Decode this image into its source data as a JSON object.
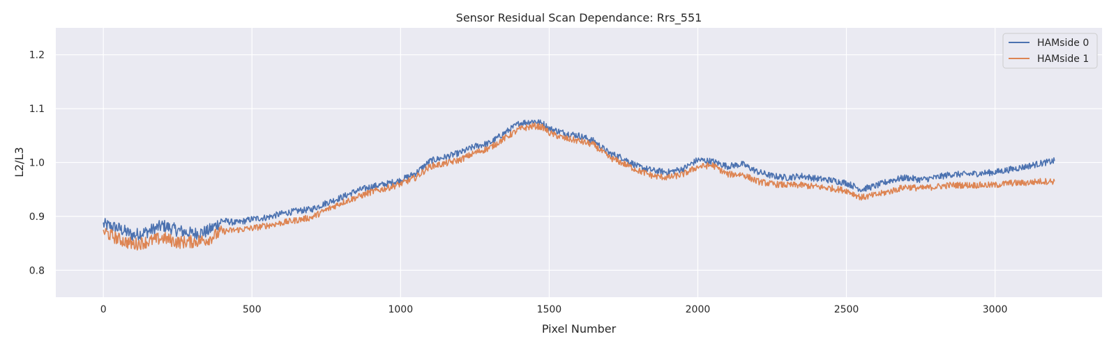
{
  "chart_data": {
    "type": "line",
    "title": "Sensor Residual Scan Dependance: Rrs_551",
    "xlabel": "Pixel Number",
    "ylabel": "L2/L3",
    "xlim": [
      -160,
      3360
    ],
    "ylim": [
      0.75,
      1.25
    ],
    "xticks": [
      0,
      500,
      1000,
      1500,
      2000,
      2500,
      3000
    ],
    "yticks": [
      0.8,
      0.9,
      1.0,
      1.1,
      1.2
    ],
    "xtick_labels": [
      "0",
      "500",
      "1000",
      "1500",
      "2000",
      "2500",
      "3000"
    ],
    "ytick_labels": [
      "0.8",
      "0.9",
      "1.0",
      "1.1",
      "1.2"
    ],
    "grid": true,
    "legend_position": "top-right",
    "x": [
      0,
      50,
      100,
      150,
      200,
      250,
      300,
      350,
      400,
      450,
      500,
      550,
      600,
      650,
      700,
      750,
      800,
      850,
      900,
      950,
      1000,
      1050,
      1100,
      1150,
      1200,
      1250,
      1300,
      1350,
      1400,
      1450,
      1480,
      1500,
      1550,
      1600,
      1650,
      1700,
      1750,
      1800,
      1850,
      1900,
      1950,
      2000,
      2050,
      2100,
      2150,
      2200,
      2250,
      2300,
      2350,
      2400,
      2450,
      2500,
      2550,
      2600,
      2650,
      2700,
      2750,
      2800,
      2850,
      2900,
      2950,
      3000,
      3050,
      3100,
      3150,
      3200
    ],
    "series": [
      {
        "name": "HAMside 0",
        "color": "#4c72b0",
        "values": [
          0.885,
          0.878,
          0.865,
          0.872,
          0.883,
          0.874,
          0.868,
          0.872,
          0.892,
          0.888,
          0.895,
          0.898,
          0.905,
          0.91,
          0.913,
          0.925,
          0.935,
          0.947,
          0.955,
          0.96,
          0.967,
          0.98,
          1.003,
          1.01,
          1.018,
          1.03,
          1.036,
          1.055,
          1.073,
          1.077,
          1.072,
          1.063,
          1.055,
          1.05,
          1.04,
          1.018,
          1.008,
          0.992,
          0.985,
          0.982,
          0.988,
          1.005,
          1.002,
          0.993,
          0.997,
          0.983,
          0.975,
          0.972,
          0.975,
          0.97,
          0.967,
          0.962,
          0.95,
          0.957,
          0.967,
          0.972,
          0.968,
          0.972,
          0.978,
          0.978,
          0.98,
          0.982,
          0.987,
          0.992,
          0.998,
          1.003
        ]
      },
      {
        "name": "HAMside 1",
        "color": "#dd8452",
        "values": [
          0.872,
          0.858,
          0.848,
          0.853,
          0.86,
          0.852,
          0.853,
          0.857,
          0.872,
          0.875,
          0.878,
          0.883,
          0.888,
          0.893,
          0.898,
          0.912,
          0.925,
          0.935,
          0.945,
          0.952,
          0.96,
          0.972,
          0.993,
          0.998,
          1.005,
          1.018,
          1.027,
          1.045,
          1.062,
          1.068,
          1.065,
          1.055,
          1.045,
          1.04,
          1.033,
          1.01,
          0.998,
          0.985,
          0.975,
          0.972,
          0.978,
          0.992,
          0.995,
          0.978,
          0.978,
          0.965,
          0.96,
          0.958,
          0.958,
          0.955,
          0.952,
          0.948,
          0.935,
          0.94,
          0.947,
          0.955,
          0.952,
          0.955,
          0.958,
          0.958,
          0.958,
          0.958,
          0.962,
          0.962,
          0.965,
          0.965
        ]
      }
    ]
  }
}
